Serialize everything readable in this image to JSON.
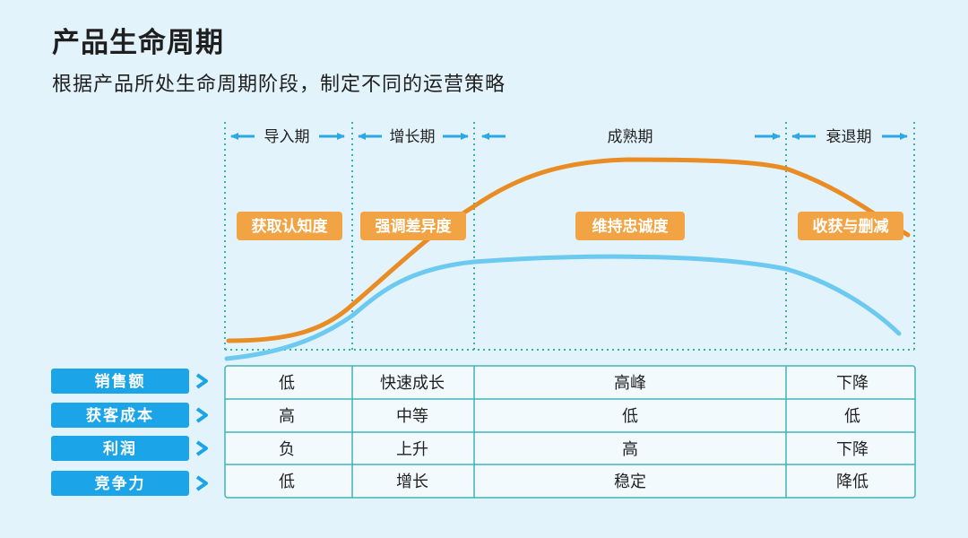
{
  "header": {
    "title": "产品生命周期",
    "subtitle": "根据产品所处生命周期阶段，制定不同的运营策略"
  },
  "stages": [
    {
      "name": "导入期",
      "strategy": "获取认知度"
    },
    {
      "name": "增长期",
      "strategy": "强调差异度"
    },
    {
      "name": "成熟期",
      "strategy": "维持忠诚度"
    },
    {
      "name": "衰退期",
      "strategy": "收获与删减"
    }
  ],
  "metrics": [
    {
      "label": "销售额",
      "values": [
        "低",
        "快速成长",
        "高峰",
        "下降"
      ]
    },
    {
      "label": "获客成本",
      "values": [
        "高",
        "中等",
        "低",
        "低"
      ]
    },
    {
      "label": "利润",
      "values": [
        "负",
        "上升",
        "高",
        "下降"
      ]
    },
    {
      "label": "竞争力",
      "values": [
        "低",
        "增长",
        "稳定",
        "降低"
      ]
    }
  ],
  "colors": {
    "background": "#e3f3fb",
    "orange_curve": "#e98c23",
    "blue_curve": "#6ccaf0",
    "badge": "#f2a444",
    "metric_label": "#1ba5e8",
    "arrow": "#2ea8e2",
    "divider": "#35b3a6",
    "table_border": "#40b4b8"
  }
}
